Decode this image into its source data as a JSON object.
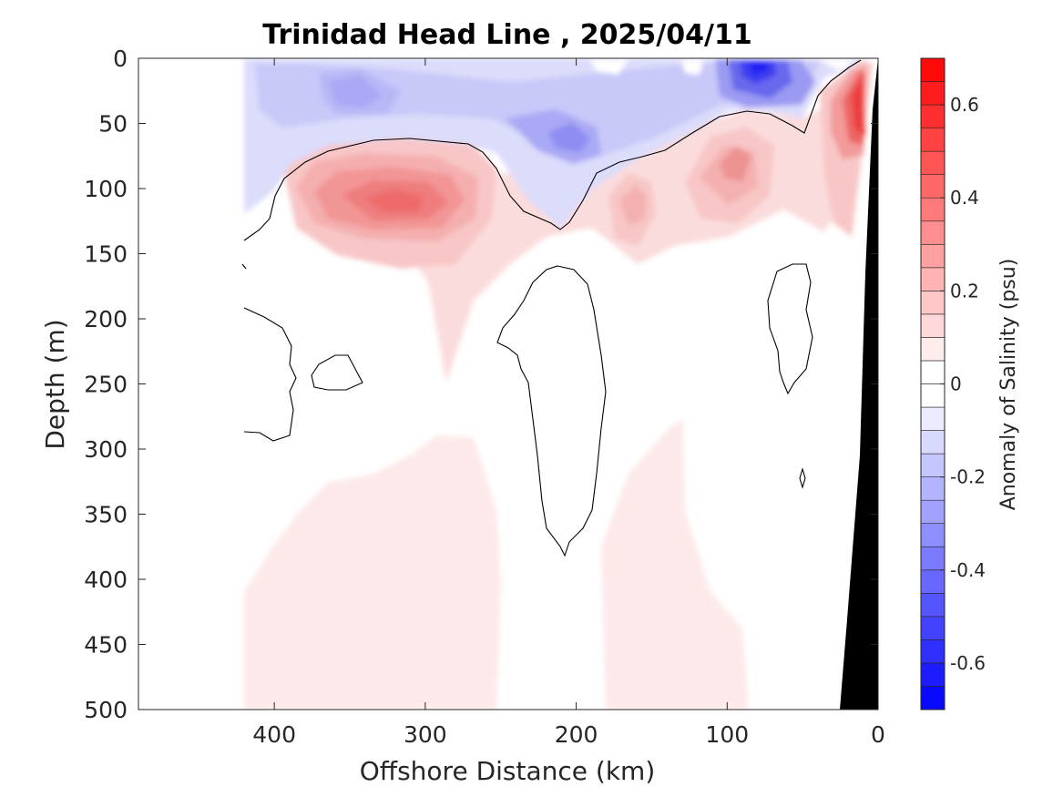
{
  "chart_data": {
    "type": "heatmap",
    "subtype": "filled-contour-section",
    "title": "Trinidad Head Line , 2025/04/11",
    "xlabel": "Offshore Distance (km)",
    "ylabel": "Depth (m)",
    "x_ticks": [
      "400",
      "300",
      "200",
      "100",
      "0"
    ],
    "x_tick_values": [
      400,
      300,
      200,
      100,
      0
    ],
    "y_ticks": [
      "0",
      "50",
      "100",
      "150",
      "200",
      "250",
      "300",
      "350",
      "400",
      "450",
      "500"
    ],
    "y_tick_values": [
      0,
      50,
      100,
      150,
      200,
      250,
      300,
      350,
      400,
      450,
      500
    ],
    "xlim": [
      490,
      0
    ],
    "ylim": [
      0,
      500
    ],
    "x_reversed": true,
    "y_reversed": true,
    "grid": false,
    "colorbar": {
      "label": "Anomaly of Salinity (psu)",
      "ticks": [
        "-0.6",
        "-0.4",
        "-0.2",
        "0",
        "0.2",
        "0.4",
        "0.6"
      ],
      "tick_values": [
        -0.6,
        -0.4,
        -0.2,
        0,
        0.2,
        0.4,
        0.6
      ],
      "range": [
        -0.7,
        0.7
      ],
      "step": 0.05,
      "neg_color": "#0000ff",
      "pos_color": "#ff0000",
      "zero_color": "#ffffff"
    },
    "data_extent_km": [
      420,
      0
    ],
    "features": [
      {
        "name": "surface fresh layer",
        "sign": "negative",
        "x_range": [
          420,
          10
        ],
        "depth_range": [
          0,
          100
        ],
        "typical": -0.15
      },
      {
        "name": "fresh core near 80 km",
        "sign": "negative",
        "x": 80,
        "depth": 10,
        "peak": -0.5
      },
      {
        "name": "fresh patch near 210 km",
        "sign": "negative",
        "x": 210,
        "depth": 60,
        "peak": -0.3
      },
      {
        "name": "fresh patch near 350 km",
        "sign": "negative",
        "x": 350,
        "depth": 25,
        "peak": -0.25
      },
      {
        "name": "salty core near 320 km",
        "sign": "positive",
        "x": 320,
        "depth": 110,
        "peak": 0.4
      },
      {
        "name": "salty patch near 160 km",
        "sign": "positive",
        "x": 160,
        "depth": 110,
        "peak": 0.2
      },
      {
        "name": "salty patch near 85 km",
        "sign": "positive",
        "x": 85,
        "depth": 90,
        "peak": 0.25
      },
      {
        "name": "nearshore salty core",
        "sign": "positive",
        "x": 10,
        "depth": 45,
        "peak": 0.65
      },
      {
        "name": "deep weak positive anomaly",
        "sign": "positive",
        "x_range": [
          420,
          80
        ],
        "depth_range": [
          300,
          500
        ],
        "typical": 0.05
      }
    ],
    "colors": {
      "bathymetry": "#000000",
      "contour_line": "#000000",
      "axes": "#262626"
    }
  }
}
